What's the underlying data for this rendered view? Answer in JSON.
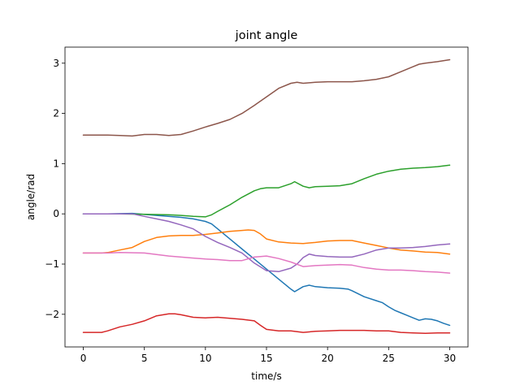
{
  "chart_data": {
    "type": "line",
    "title": "joint angle",
    "xlabel": "time/s",
    "ylabel": "angle/rad",
    "xlim": [
      -1.5,
      31.5
    ],
    "ylim": [
      -2.65,
      3.32
    ],
    "xticks": [
      0,
      5,
      10,
      15,
      20,
      25,
      30
    ],
    "yticks": [
      -2,
      -1,
      0,
      1,
      2,
      3
    ],
    "grid": false,
    "legend": "none",
    "series": [
      {
        "color": "#1f77b4",
        "points": [
          [
            0,
            0
          ],
          [
            2,
            0
          ],
          [
            4,
            0.01
          ],
          [
            6,
            -0.03
          ],
          [
            8,
            -0.07
          ],
          [
            9,
            -0.1
          ],
          [
            10,
            -0.15
          ],
          [
            10.5,
            -0.2
          ],
          [
            11,
            -0.3
          ],
          [
            12,
            -0.5
          ],
          [
            13,
            -0.7
          ],
          [
            14,
            -0.9
          ],
          [
            15,
            -1.1
          ],
          [
            16,
            -1.3
          ],
          [
            16.5,
            -1.4
          ],
          [
            17,
            -1.5
          ],
          [
            17.3,
            -1.55
          ],
          [
            18,
            -1.45
          ],
          [
            18.5,
            -1.42
          ],
          [
            19,
            -1.45
          ],
          [
            20,
            -1.47
          ],
          [
            21,
            -1.48
          ],
          [
            21.7,
            -1.5
          ],
          [
            22,
            -1.53
          ],
          [
            23,
            -1.65
          ],
          [
            24,
            -1.73
          ],
          [
            24.5,
            -1.77
          ],
          [
            25,
            -1.85
          ],
          [
            25.5,
            -1.92
          ],
          [
            26,
            -1.97
          ],
          [
            26.5,
            -2.02
          ],
          [
            27,
            -2.07
          ],
          [
            27.5,
            -2.12
          ],
          [
            28,
            -2.09
          ],
          [
            28.5,
            -2.1
          ],
          [
            29,
            -2.13
          ],
          [
            29.5,
            -2.18
          ],
          [
            30,
            -2.22
          ]
        ]
      },
      {
        "color": "#ff7f0e",
        "points": [
          [
            0,
            -0.78
          ],
          [
            1.5,
            -0.78
          ],
          [
            2,
            -0.77
          ],
          [
            3,
            -0.72
          ],
          [
            4,
            -0.67
          ],
          [
            5,
            -0.55
          ],
          [
            6,
            -0.47
          ],
          [
            7,
            -0.44
          ],
          [
            8,
            -0.43
          ],
          [
            9,
            -0.43
          ],
          [
            10,
            -0.41
          ],
          [
            11,
            -0.38
          ],
          [
            12,
            -0.35
          ],
          [
            13,
            -0.33
          ],
          [
            13.5,
            -0.32
          ],
          [
            14,
            -0.33
          ],
          [
            14.5,
            -0.4
          ],
          [
            15,
            -0.5
          ],
          [
            16,
            -0.56
          ],
          [
            17,
            -0.58
          ],
          [
            18,
            -0.59
          ],
          [
            19,
            -0.57
          ],
          [
            20,
            -0.54
          ],
          [
            21,
            -0.53
          ],
          [
            22,
            -0.53
          ],
          [
            23,
            -0.58
          ],
          [
            24,
            -0.63
          ],
          [
            25,
            -0.68
          ],
          [
            26,
            -0.72
          ],
          [
            27,
            -0.74
          ],
          [
            28,
            -0.76
          ],
          [
            29,
            -0.77
          ],
          [
            30,
            -0.8
          ]
        ]
      },
      {
        "color": "#2ca02c",
        "points": [
          [
            0,
            0
          ],
          [
            3,
            0
          ],
          [
            5,
            -0.01
          ],
          [
            7,
            -0.02
          ],
          [
            8,
            -0.03
          ],
          [
            9,
            -0.05
          ],
          [
            10,
            -0.06
          ],
          [
            10.5,
            -0.02
          ],
          [
            11,
            0.05
          ],
          [
            12,
            0.18
          ],
          [
            13,
            0.33
          ],
          [
            14,
            0.46
          ],
          [
            14.5,
            0.5
          ],
          [
            15,
            0.52
          ],
          [
            16,
            0.52
          ],
          [
            17,
            0.6
          ],
          [
            17.3,
            0.64
          ],
          [
            18,
            0.55
          ],
          [
            18.5,
            0.52
          ],
          [
            19,
            0.54
          ],
          [
            20,
            0.55
          ],
          [
            21,
            0.56
          ],
          [
            22,
            0.6
          ],
          [
            23,
            0.7
          ],
          [
            24,
            0.79
          ],
          [
            25,
            0.85
          ],
          [
            26,
            0.89
          ],
          [
            27,
            0.91
          ],
          [
            28,
            0.92
          ],
          [
            29,
            0.94
          ],
          [
            30,
            0.97
          ]
        ]
      },
      {
        "color": "#d62728",
        "points": [
          [
            0,
            -2.36
          ],
          [
            1.5,
            -2.36
          ],
          [
            2,
            -2.33
          ],
          [
            3,
            -2.25
          ],
          [
            4,
            -2.2
          ],
          [
            5,
            -2.13
          ],
          [
            6,
            -2.03
          ],
          [
            7,
            -1.99
          ],
          [
            7.5,
            -1.99
          ],
          [
            8,
            -2.01
          ],
          [
            9,
            -2.06
          ],
          [
            10,
            -2.07
          ],
          [
            11,
            -2.06
          ],
          [
            12,
            -2.08
          ],
          [
            13,
            -2.1
          ],
          [
            14,
            -2.13
          ],
          [
            14.5,
            -2.22
          ],
          [
            15,
            -2.3
          ],
          [
            16,
            -2.33
          ],
          [
            17,
            -2.33
          ],
          [
            18,
            -2.36
          ],
          [
            19,
            -2.34
          ],
          [
            20,
            -2.33
          ],
          [
            21,
            -2.32
          ],
          [
            22,
            -2.32
          ],
          [
            23,
            -2.32
          ],
          [
            24,
            -2.33
          ],
          [
            25,
            -2.33
          ],
          [
            26,
            -2.36
          ],
          [
            27,
            -2.37
          ],
          [
            28,
            -2.38
          ],
          [
            29,
            -2.37
          ],
          [
            30,
            -2.37
          ]
        ]
      },
      {
        "color": "#9467bd",
        "points": [
          [
            0,
            0
          ],
          [
            2,
            0
          ],
          [
            4,
            0
          ],
          [
            5,
            -0.05
          ],
          [
            6,
            -0.1
          ],
          [
            7,
            -0.15
          ],
          [
            8,
            -0.22
          ],
          [
            9,
            -0.3
          ],
          [
            10,
            -0.45
          ],
          [
            11,
            -0.57
          ],
          [
            12,
            -0.67
          ],
          [
            13,
            -0.78
          ],
          [
            14,
            -0.98
          ],
          [
            15,
            -1.13
          ],
          [
            16,
            -1.15
          ],
          [
            17,
            -1.08
          ],
          [
            17.5,
            -1.0
          ],
          [
            18,
            -0.87
          ],
          [
            18.5,
            -0.8
          ],
          [
            19,
            -0.83
          ],
          [
            20,
            -0.85
          ],
          [
            21,
            -0.86
          ],
          [
            22,
            -0.86
          ],
          [
            23,
            -0.8
          ],
          [
            24,
            -0.72
          ],
          [
            25,
            -0.68
          ],
          [
            26,
            -0.68
          ],
          [
            27,
            -0.67
          ],
          [
            28,
            -0.65
          ],
          [
            29,
            -0.62
          ],
          [
            30,
            -0.6
          ]
        ]
      },
      {
        "color": "#8c564b",
        "points": [
          [
            0,
            1.57
          ],
          [
            1.5,
            1.57
          ],
          [
            2,
            1.57
          ],
          [
            3,
            1.56
          ],
          [
            4,
            1.55
          ],
          [
            5,
            1.58
          ],
          [
            6,
            1.58
          ],
          [
            7,
            1.56
          ],
          [
            8,
            1.58
          ],
          [
            9,
            1.65
          ],
          [
            10,
            1.73
          ],
          [
            11,
            1.8
          ],
          [
            12,
            1.88
          ],
          [
            13,
            2.0
          ],
          [
            14,
            2.16
          ],
          [
            15,
            2.33
          ],
          [
            16,
            2.5
          ],
          [
            17,
            2.6
          ],
          [
            17.5,
            2.62
          ],
          [
            18,
            2.6
          ],
          [
            19,
            2.62
          ],
          [
            20,
            2.63
          ],
          [
            21,
            2.63
          ],
          [
            22,
            2.63
          ],
          [
            23,
            2.65
          ],
          [
            24,
            2.68
          ],
          [
            25,
            2.73
          ],
          [
            26,
            2.83
          ],
          [
            27,
            2.93
          ],
          [
            27.5,
            2.98
          ],
          [
            28,
            3.0
          ],
          [
            29,
            3.03
          ],
          [
            30,
            3.07
          ]
        ]
      },
      {
        "color": "#e377c2",
        "points": [
          [
            0,
            -0.78
          ],
          [
            2,
            -0.78
          ],
          [
            3,
            -0.77
          ],
          [
            5,
            -0.78
          ],
          [
            7,
            -0.84
          ],
          [
            9,
            -0.88
          ],
          [
            10,
            -0.9
          ],
          [
            11,
            -0.91
          ],
          [
            12,
            -0.93
          ],
          [
            13,
            -0.93
          ],
          [
            14,
            -0.86
          ],
          [
            15,
            -0.84
          ],
          [
            16,
            -0.89
          ],
          [
            17,
            -0.96
          ],
          [
            18,
            -1.05
          ],
          [
            19,
            -1.03
          ],
          [
            20,
            -1.02
          ],
          [
            21,
            -1.01
          ],
          [
            22,
            -1.02
          ],
          [
            23,
            -1.07
          ],
          [
            24,
            -1.1
          ],
          [
            25,
            -1.12
          ],
          [
            26,
            -1.12
          ],
          [
            27,
            -1.13
          ],
          [
            28,
            -1.15
          ],
          [
            29,
            -1.16
          ],
          [
            30,
            -1.18
          ]
        ]
      }
    ]
  }
}
